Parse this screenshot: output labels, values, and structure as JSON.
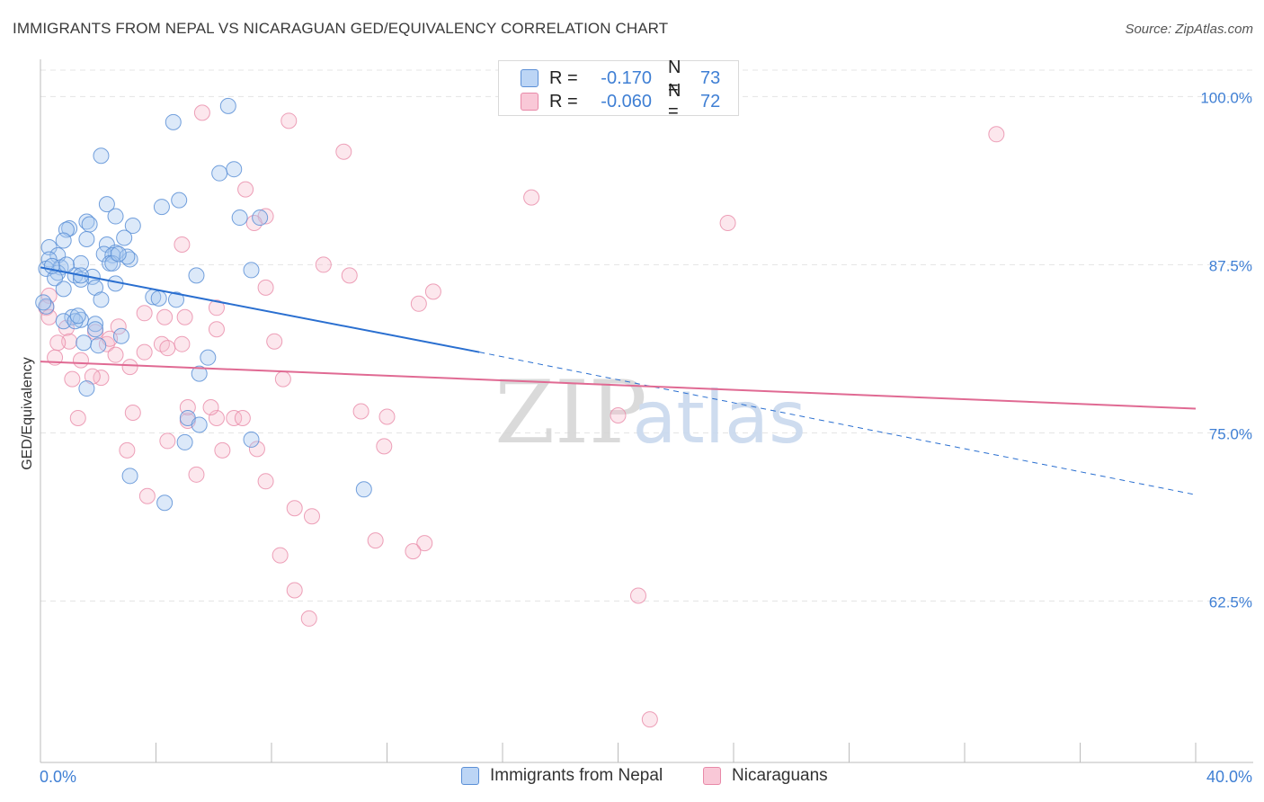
{
  "header": {
    "title": "IMMIGRANTS FROM NEPAL VS NICARAGUAN GED/EQUIVALENCY CORRELATION CHART",
    "source": "Source: ZipAtlas.com"
  },
  "legend_top": [
    {
      "r_label": "R =",
      "r_value": "-0.170",
      "n_label": "N =",
      "n_value": "73"
    },
    {
      "r_label": "R =",
      "r_value": "-0.060",
      "n_label": "N =",
      "n_value": "72"
    }
  ],
  "legend_bottom": [
    "Immigrants from Nepal",
    "Nicaraguans"
  ],
  "watermark": {
    "zip": "ZIP",
    "atlas": "atlas"
  },
  "colors": {
    "nepal_fill": "#a8c8f0",
    "nepal_stroke": "#5b8fd6",
    "nepal_line": "#2a6fd0",
    "nic_fill": "#f6b9cb",
    "nic_stroke": "#e889a8",
    "nic_line": "#e06a93",
    "tick_label": "#3f7fd4",
    "grid": "#e4e4e4"
  },
  "chart_data": {
    "type": "scatter",
    "title": "IMMIGRANTS FROM NEPAL VS NICARAGUAN GED/EQUIVALENCY CORRELATION CHART",
    "xlabel": "",
    "ylabel": "GED/Equivalency",
    "xlim": [
      0,
      40
    ],
    "ylim": [
      50.5,
      102.5
    ],
    "x_tick_labels": [
      "0.0%",
      "40.0%"
    ],
    "y_ticks": [
      62.5,
      75.0,
      87.5,
      100.0
    ],
    "y_tick_labels": [
      "62.5%",
      "75.0%",
      "87.5%",
      "100.0%"
    ],
    "grid": true,
    "series": [
      {
        "name": "Immigrants from Nepal",
        "r": -0.17,
        "n": 73,
        "trend": {
          "x0": 0.0,
          "y0": 87.3,
          "x1": 15.2,
          "y1": 81.0,
          "x_dash_end": 40.0,
          "y_dash_end": 70.4
        },
        "points": [
          [
            6.5,
            99.3
          ],
          [
            4.6,
            98.1
          ],
          [
            2.1,
            95.6
          ],
          [
            6.7,
            94.6
          ],
          [
            6.2,
            94.3
          ],
          [
            4.8,
            92.3
          ],
          [
            2.3,
            92.0
          ],
          [
            4.2,
            91.8
          ],
          [
            6.9,
            91.0
          ],
          [
            7.6,
            91.0
          ],
          [
            2.6,
            91.1
          ],
          [
            1.6,
            90.7
          ],
          [
            3.2,
            90.4
          ],
          [
            1.7,
            90.5
          ],
          [
            1.0,
            90.2
          ],
          [
            0.9,
            90.1
          ],
          [
            2.9,
            89.5
          ],
          [
            1.6,
            89.4
          ],
          [
            0.8,
            89.3
          ],
          [
            2.3,
            89.0
          ],
          [
            0.3,
            88.8
          ],
          [
            2.6,
            88.4
          ],
          [
            2.2,
            88.3
          ],
          [
            2.5,
            88.2
          ],
          [
            0.6,
            88.2
          ],
          [
            0.3,
            87.9
          ],
          [
            3.1,
            87.9
          ],
          [
            1.4,
            87.6
          ],
          [
            2.4,
            87.6
          ],
          [
            0.7,
            87.3
          ],
          [
            0.2,
            87.2
          ],
          [
            7.3,
            87.1
          ],
          [
            0.6,
            86.9
          ],
          [
            5.4,
            86.7
          ],
          [
            1.2,
            86.7
          ],
          [
            1.8,
            86.6
          ],
          [
            0.5,
            86.5
          ],
          [
            1.4,
            86.4
          ],
          [
            2.6,
            86.1
          ],
          [
            0.8,
            85.7
          ],
          [
            1.9,
            85.8
          ],
          [
            2.1,
            84.9
          ],
          [
            3.9,
            85.1
          ],
          [
            4.1,
            85.0
          ],
          [
            4.7,
            84.9
          ],
          [
            0.2,
            84.4
          ],
          [
            1.1,
            83.6
          ],
          [
            1.4,
            83.4
          ],
          [
            0.8,
            83.3
          ],
          [
            1.9,
            83.1
          ],
          [
            1.9,
            82.7
          ],
          [
            2.8,
            82.2
          ],
          [
            1.5,
            81.7
          ],
          [
            2.0,
            81.5
          ],
          [
            5.8,
            80.6
          ],
          [
            5.5,
            79.4
          ],
          [
            1.6,
            78.3
          ],
          [
            5.1,
            76.1
          ],
          [
            5.5,
            75.6
          ],
          [
            7.3,
            74.5
          ],
          [
            5.0,
            74.3
          ],
          [
            3.1,
            71.8
          ],
          [
            4.3,
            69.8
          ],
          [
            11.2,
            70.8
          ],
          [
            1.4,
            86.7
          ],
          [
            0.9,
            87.5
          ],
          [
            2.5,
            87.6
          ],
          [
            1.2,
            83.3
          ],
          [
            0.1,
            84.7
          ],
          [
            3.0,
            88.1
          ],
          [
            0.4,
            87.4
          ],
          [
            1.3,
            83.7
          ],
          [
            2.7,
            88.3
          ]
        ]
      },
      {
        "name": "Nicaraguans",
        "r": -0.06,
        "n": 72,
        "trend": {
          "x0": 0.0,
          "y0": 80.3,
          "x1": 40.0,
          "y1": 76.8
        },
        "points": [
          [
            5.6,
            98.8
          ],
          [
            8.6,
            98.2
          ],
          [
            33.1,
            97.2
          ],
          [
            10.5,
            95.9
          ],
          [
            7.1,
            93.1
          ],
          [
            17.0,
            92.5
          ],
          [
            7.8,
            91.1
          ],
          [
            7.4,
            90.6
          ],
          [
            23.8,
            90.6
          ],
          [
            4.9,
            89.0
          ],
          [
            9.8,
            87.5
          ],
          [
            10.7,
            86.7
          ],
          [
            7.8,
            85.8
          ],
          [
            13.6,
            85.5
          ],
          [
            13.1,
            84.6
          ],
          [
            6.1,
            84.3
          ],
          [
            0.3,
            85.2
          ],
          [
            0.2,
            84.3
          ],
          [
            3.6,
            83.9
          ],
          [
            4.3,
            83.6
          ],
          [
            5.0,
            83.6
          ],
          [
            0.3,
            83.6
          ],
          [
            2.7,
            82.9
          ],
          [
            6.1,
            82.7
          ],
          [
            0.9,
            82.8
          ],
          [
            1.9,
            82.5
          ],
          [
            8.1,
            81.8
          ],
          [
            1.0,
            81.8
          ],
          [
            0.6,
            81.7
          ],
          [
            2.3,
            81.6
          ],
          [
            4.9,
            81.6
          ],
          [
            4.2,
            81.6
          ],
          [
            4.4,
            81.3
          ],
          [
            2.6,
            80.8
          ],
          [
            0.5,
            80.6
          ],
          [
            1.4,
            80.4
          ],
          [
            3.1,
            79.9
          ],
          [
            8.4,
            79.0
          ],
          [
            1.1,
            79.0
          ],
          [
            2.1,
            79.1
          ],
          [
            1.8,
            79.2
          ],
          [
            11.1,
            76.6
          ],
          [
            3.2,
            76.5
          ],
          [
            12.0,
            76.2
          ],
          [
            20.0,
            76.3
          ],
          [
            1.3,
            76.1
          ],
          [
            6.7,
            76.1
          ],
          [
            7.0,
            76.1
          ],
          [
            6.1,
            76.1
          ],
          [
            5.1,
            75.9
          ],
          [
            4.4,
            74.4
          ],
          [
            11.9,
            74.0
          ],
          [
            7.5,
            73.8
          ],
          [
            3.0,
            73.7
          ],
          [
            6.3,
            73.7
          ],
          [
            5.4,
            71.9
          ],
          [
            7.8,
            71.4
          ],
          [
            3.7,
            70.3
          ],
          [
            8.8,
            69.4
          ],
          [
            9.4,
            68.8
          ],
          [
            11.6,
            67.0
          ],
          [
            13.3,
            66.8
          ],
          [
            12.9,
            66.2
          ],
          [
            8.3,
            65.9
          ],
          [
            8.8,
            63.3
          ],
          [
            20.7,
            62.9
          ],
          [
            9.3,
            61.2
          ],
          [
            21.1,
            53.7
          ],
          [
            5.1,
            76.9
          ],
          [
            5.9,
            76.9
          ],
          [
            2.4,
            82.0
          ],
          [
            3.6,
            81.0
          ]
        ]
      }
    ]
  }
}
